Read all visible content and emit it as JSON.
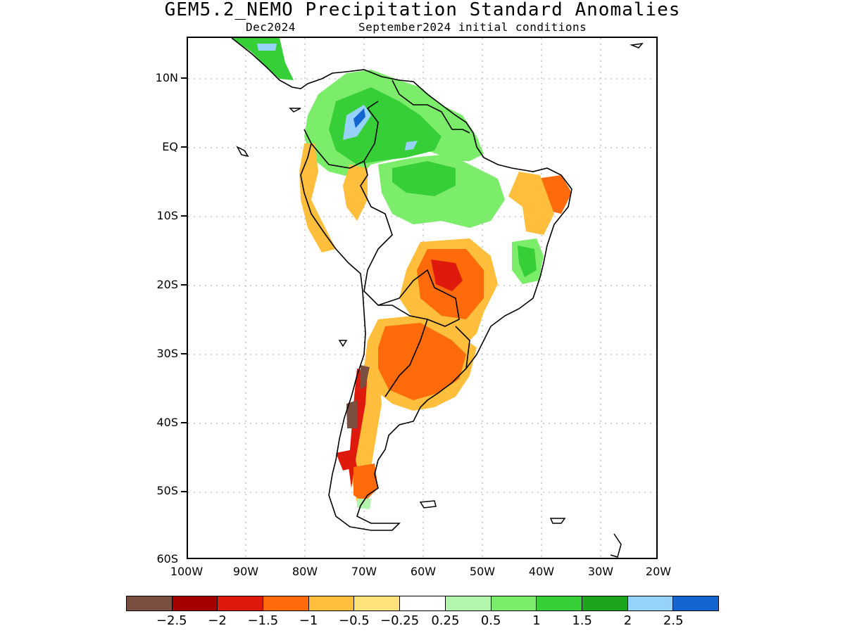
{
  "header": {
    "title": "GEM5.2_NEMO Precipitation Standard Anomalies",
    "month": "Dec2024",
    "init": "September2024 initial conditions"
  },
  "axes": {
    "lat_labels": [
      "10N",
      "EQ",
      "10S",
      "20S",
      "30S",
      "40S",
      "50S",
      "60S"
    ],
    "lon_labels": [
      "100W",
      "90W",
      "80W",
      "70W",
      "60W",
      "50W",
      "40W",
      "30W",
      "20W"
    ]
  },
  "legend": {
    "colors": [
      "#7a4f3f",
      "#a50000",
      "#e0190d",
      "#ff6a0a",
      "#ffbe3c",
      "#ffe27a",
      "#ffffff",
      "#b4f5ad",
      "#7ced6b",
      "#37cf37",
      "#1ea51e",
      "#96d2fa",
      "#1464d2"
    ],
    "labels": [
      "−2.5",
      "−2",
      "−1.5",
      "−1",
      "−0.5",
      "−0.25",
      "0.25",
      "0.5",
      "1",
      "1.5",
      "2",
      "2.5"
    ]
  }
}
